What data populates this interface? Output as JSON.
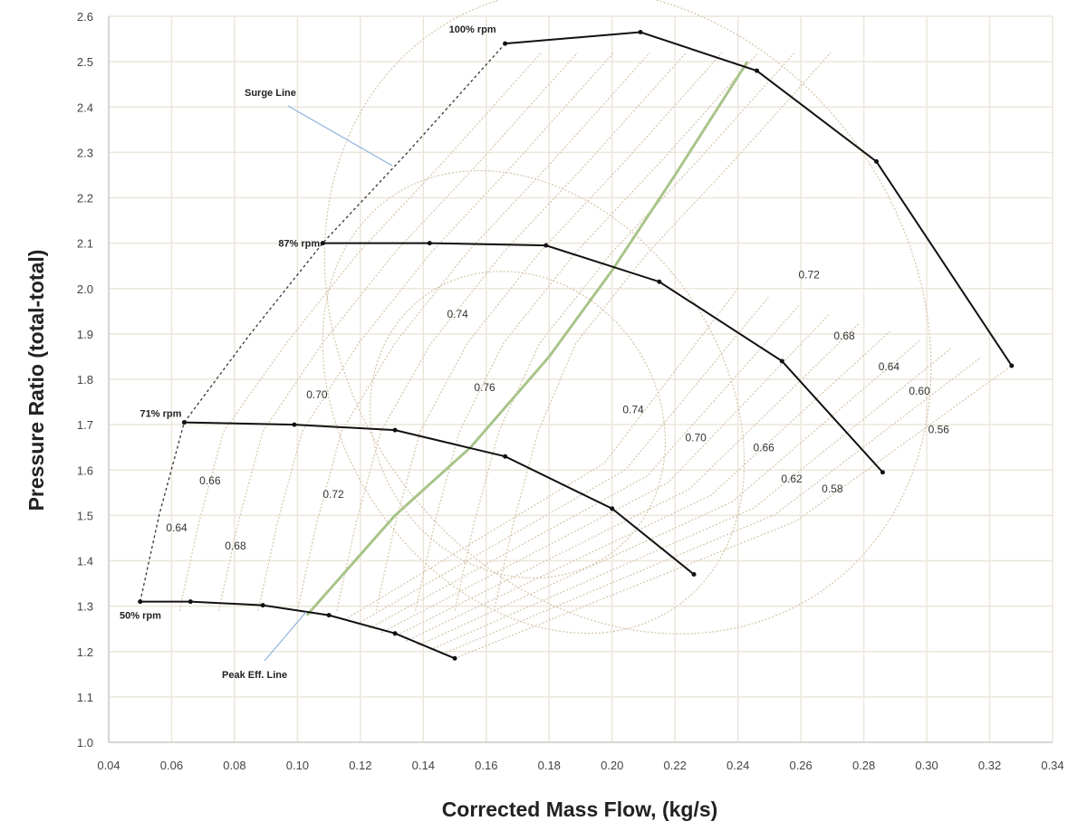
{
  "chart_data": {
    "type": "line",
    "xlabel": "Corrected Mass Flow, (kg/s)",
    "ylabel": "Pressure Ratio (total-total)",
    "xlim": [
      0.04,
      0.34
    ],
    "ylim": [
      1.0,
      2.6
    ],
    "xticks": [
      "0.04",
      "0.06",
      "0.08",
      "0.10",
      "0.12",
      "0.14",
      "0.16",
      "0.18",
      "0.20",
      "0.22",
      "0.24",
      "0.26",
      "0.28",
      "0.30",
      "0.32",
      "0.34"
    ],
    "yticks": [
      "1.0",
      "1.1",
      "1.2",
      "1.3",
      "1.4",
      "1.5",
      "1.6",
      "1.7",
      "1.8",
      "1.9",
      "2.0",
      "2.1",
      "2.2",
      "2.3",
      "2.4",
      "2.5",
      "2.6"
    ],
    "grid": true,
    "speed_lines": [
      {
        "name": "100% rpm",
        "x": [
          0.166,
          0.209,
          0.246,
          0.284,
          0.327
        ],
        "y": [
          2.54,
          2.565,
          2.48,
          2.28,
          1.83
        ]
      },
      {
        "name": "87% rpm",
        "x": [
          0.108,
          0.142,
          0.179,
          0.215,
          0.254,
          0.286
        ],
        "y": [
          2.1,
          2.1,
          2.095,
          2.015,
          1.84,
          1.595
        ]
      },
      {
        "name": "71% rpm",
        "x": [
          0.064,
          0.099,
          0.131,
          0.166,
          0.2,
          0.226
        ],
        "y": [
          1.705,
          1.7,
          1.688,
          1.63,
          1.515,
          1.37
        ]
      },
      {
        "name": "50% rpm",
        "x": [
          0.05,
          0.066,
          0.089,
          0.11,
          0.131,
          0.15
        ],
        "y": [
          1.31,
          1.31,
          1.302,
          1.28,
          1.24,
          1.185
        ]
      }
    ],
    "surge_line": {
      "name": "Surge Line",
      "x": [
        0.05,
        0.056,
        0.064,
        0.085,
        0.108,
        0.135,
        0.166
      ],
      "y": [
        1.31,
        1.5,
        1.705,
        1.9,
        2.1,
        2.3,
        2.54
      ]
    },
    "peak_eff_line": {
      "name": "Peak Eff. Line",
      "x": [
        0.103,
        0.131,
        0.155,
        0.18,
        0.2,
        0.22,
        0.243
      ],
      "y": [
        1.28,
        1.5,
        1.65,
        1.85,
        2.04,
        2.25,
        2.5
      ]
    },
    "efficiency_labels": [
      {
        "text": "0.72",
        "x": 0.2626,
        "y": 2.03
      },
      {
        "text": "0.74",
        "x": 0.1509,
        "y": 1.944
      },
      {
        "text": "0.68",
        "x": 0.2738,
        "y": 1.896
      },
      {
        "text": "0.64",
        "x": 0.288,
        "y": 1.828
      },
      {
        "text": "0.60",
        "x": 0.2977,
        "y": 1.774
      },
      {
        "text": "0.56",
        "x": 0.3038,
        "y": 1.689
      },
      {
        "text": "0.76",
        "x": 0.1595,
        "y": 1.782
      },
      {
        "text": "0.70",
        "x": 0.1062,
        "y": 1.766
      },
      {
        "text": "0.74",
        "x": 0.2067,
        "y": 1.733
      },
      {
        "text": "0.70",
        "x": 0.2266,
        "y": 1.671
      },
      {
        "text": "0.66",
        "x": 0.2482,
        "y": 1.649
      },
      {
        "text": "0.62",
        "x": 0.2571,
        "y": 1.581
      },
      {
        "text": "0.58",
        "x": 0.27,
        "y": 1.559
      },
      {
        "text": "0.66",
        "x": 0.0722,
        "y": 1.577
      },
      {
        "text": "0.72",
        "x": 0.1114,
        "y": 1.547
      },
      {
        "text": "0.64",
        "x": 0.0616,
        "y": 1.473
      },
      {
        "text": "0.68",
        "x": 0.0803,
        "y": 1.433
      }
    ],
    "colors": {
      "speed": "#111111",
      "surge": "#333333",
      "peak": "#a9c48a",
      "contour": "#d4c4a8",
      "grid": "#ece6dc",
      "leader": "#8fb4dc"
    }
  }
}
